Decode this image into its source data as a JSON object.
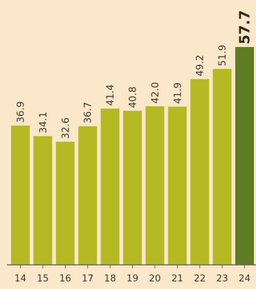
{
  "colors": {
    "background": "#fbe7c9",
    "bar": "#b5b923",
    "bar_highlight": "#5f7d23",
    "axis": "#6b6252",
    "label": "#3f3a30"
  },
  "chart_data": {
    "type": "bar",
    "categories": [
      "14",
      "15",
      "16",
      "17",
      "18",
      "19",
      "20",
      "21",
      "22",
      "23",
      "24"
    ],
    "values": [
      36.9,
      34.1,
      32.6,
      36.7,
      41.4,
      40.8,
      42.0,
      41.9,
      49.2,
      51.9,
      57.7
    ],
    "value_labels": [
      "36.9",
      "34.1",
      "32.6",
      "36.7",
      "41.4",
      "40.8",
      "42.0",
      "41.9",
      "49.2",
      "51.9",
      "57.7"
    ],
    "highlight_index": 10,
    "title": "",
    "xlabel": "",
    "ylabel": "",
    "ylim": [
      0,
      57.7
    ],
    "grid": false,
    "legend": "none"
  }
}
